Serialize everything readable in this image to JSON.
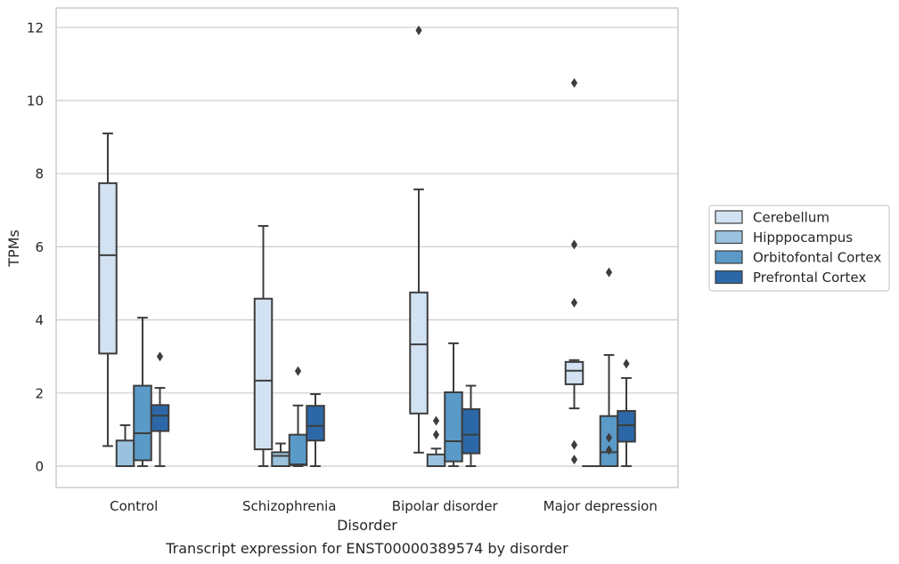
{
  "chart_data": {
    "type": "box",
    "title": "Transcript expression for ENST00000389574 by disorder",
    "xlabel": "Disorder",
    "ylabel": "TPMs",
    "ylim": [
      -0.6,
      12.5
    ],
    "yticks": [
      0,
      2,
      4,
      6,
      8,
      10,
      12
    ],
    "grid": true,
    "legend_position": "right",
    "categories": [
      "Control",
      "Schizophrenia",
      "Bipolar disorder",
      "Major depression"
    ],
    "series": [
      {
        "name": "Cerebellum",
        "color": "#d2e2f2",
        "boxes": [
          {
            "whisker_low": 0.55,
            "q1": 3.08,
            "median": 5.77,
            "q3": 7.74,
            "whisker_high": 9.1,
            "outliers": []
          },
          {
            "whisker_low": 0.0,
            "q1": 0.46,
            "median": 2.34,
            "q3": 4.58,
            "whisker_high": 6.57,
            "outliers": []
          },
          {
            "whisker_low": 0.37,
            "q1": 1.44,
            "median": 3.33,
            "q3": 4.75,
            "whisker_high": 7.57,
            "outliers": [
              11.92
            ]
          },
          {
            "whisker_low": 1.58,
            "q1": 2.24,
            "median": 2.61,
            "q3": 2.85,
            "whisker_high": 2.9,
            "outliers": [
              10.48,
              6.06,
              4.47,
              0.58,
              0.18
            ]
          }
        ]
      },
      {
        "name": "Hipppocampus",
        "color": "#9ac2de",
        "boxes": [
          {
            "whisker_low": 0.0,
            "q1": 0.0,
            "median": 0.0,
            "q3": 0.7,
            "whisker_high": 1.12,
            "outliers": []
          },
          {
            "whisker_low": 0.0,
            "q1": 0.0,
            "median": 0.28,
            "q3": 0.38,
            "whisker_high": 0.62,
            "outliers": []
          },
          {
            "whisker_low": 0.0,
            "q1": 0.0,
            "median": 0.0,
            "q3": 0.32,
            "whisker_high": 0.48,
            "outliers": [
              1.24,
              0.86
            ]
          },
          {
            "whisker_low": 0.0,
            "q1": 0.0,
            "median": 0.0,
            "q3": 0.0,
            "whisker_high": 0.0,
            "outliers": []
          }
        ]
      },
      {
        "name": "Orbitofontal Cortex",
        "color": "#5a9ac8",
        "boxes": [
          {
            "whisker_low": 0.0,
            "q1": 0.16,
            "median": 0.9,
            "q3": 2.2,
            "whisker_high": 4.06,
            "outliers": []
          },
          {
            "whisker_low": 0.0,
            "q1": 0.03,
            "median": 0.05,
            "q3": 0.86,
            "whisker_high": 1.66,
            "outliers": [
              2.6
            ]
          },
          {
            "whisker_low": 0.0,
            "q1": 0.13,
            "median": 0.68,
            "q3": 2.02,
            "whisker_high": 3.36,
            "outliers": []
          },
          {
            "whisker_low": 0.0,
            "q1": 0.0,
            "median": 0.38,
            "q3": 1.37,
            "whisker_high": 3.04,
            "outliers": [
              5.3,
              0.78,
              0.44
            ]
          }
        ]
      },
      {
        "name": "Prefrontal Cortex",
        "color": "#2c68a8",
        "boxes": [
          {
            "whisker_low": 0.0,
            "q1": 0.96,
            "median": 1.38,
            "q3": 1.67,
            "whisker_high": 2.14,
            "outliers": [
              3.0
            ]
          },
          {
            "whisker_low": 0.0,
            "q1": 0.7,
            "median": 1.1,
            "q3": 1.65,
            "whisker_high": 1.97,
            "outliers": []
          },
          {
            "whisker_low": 0.0,
            "q1": 0.35,
            "median": 0.86,
            "q3": 1.56,
            "whisker_high": 2.2,
            "outliers": []
          },
          {
            "whisker_low": 0.0,
            "q1": 0.67,
            "median": 1.12,
            "q3": 1.51,
            "whisker_high": 2.41,
            "outliers": [
              2.8
            ]
          }
        ]
      }
    ]
  }
}
